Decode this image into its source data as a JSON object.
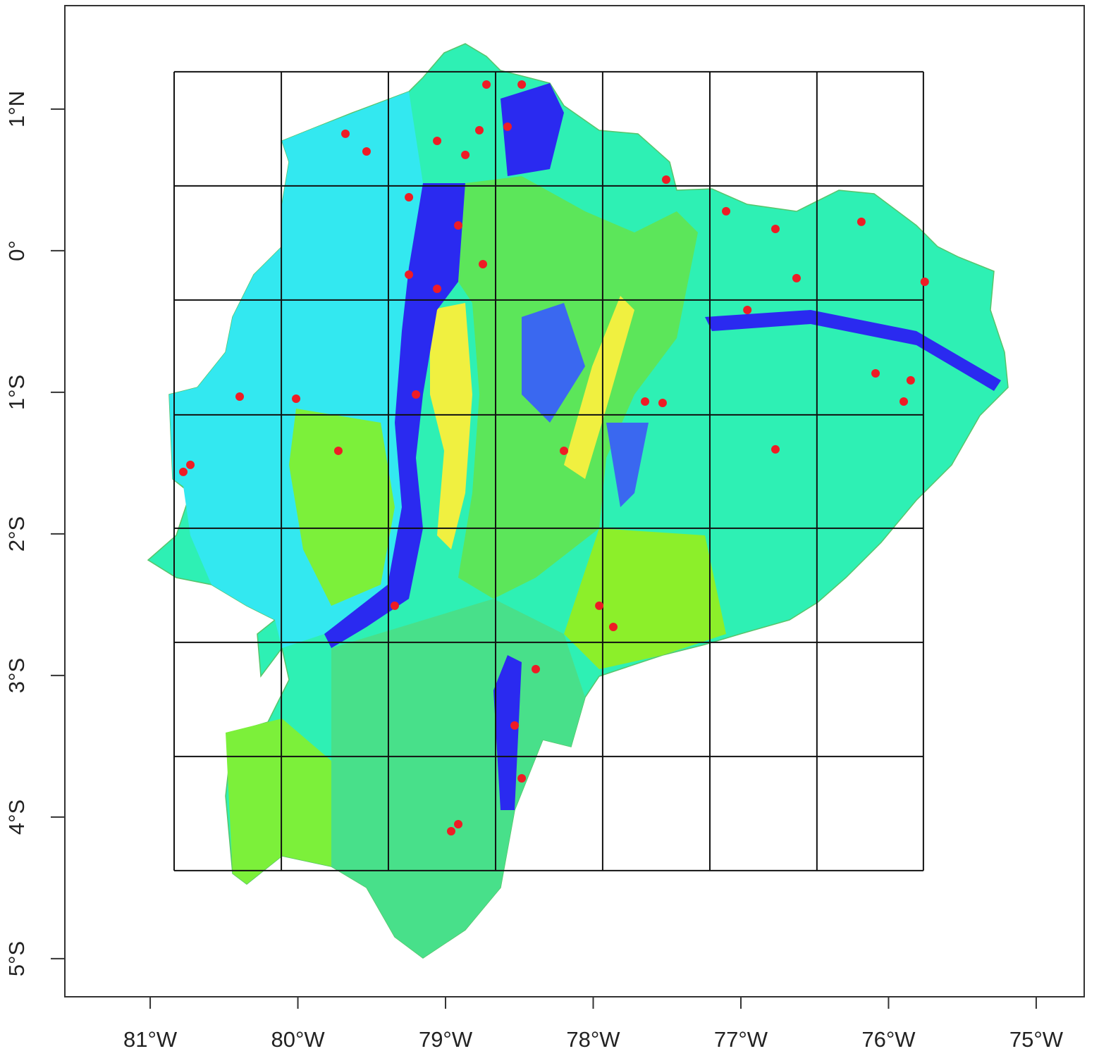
{
  "chart_data": {
    "type": "map",
    "xlim": [
      -81.578,
      -74.675
    ],
    "ylim": [
      -5.269,
      1.731
    ],
    "xticks": [
      {
        "value": -81,
        "label": "81°W"
      },
      {
        "value": -80,
        "label": "80°W"
      },
      {
        "value": -79,
        "label": "79°W"
      },
      {
        "value": -78,
        "label": "78°W"
      },
      {
        "value": -77,
        "label": "77°W"
      },
      {
        "value": -76,
        "label": "76°W"
      },
      {
        "value": -75,
        "label": "75°W"
      }
    ],
    "yticks": [
      {
        "value": 1,
        "label": "1°N"
      },
      {
        "value": 0,
        "label": "0°"
      },
      {
        "value": -1,
        "label": "1°S"
      },
      {
        "value": -2,
        "label": "2°S"
      },
      {
        "value": -3,
        "label": "3°S"
      },
      {
        "value": -4,
        "label": "4°S"
      },
      {
        "value": -5,
        "label": "5°S"
      }
    ],
    "grid_lon": [
      -80.838,
      -80.112,
      -79.387,
      -78.661,
      -77.936,
      -77.21,
      -76.485,
      -75.764
    ],
    "grid_lat": [
      1.264,
      0.458,
      -0.348,
      -1.159,
      -1.96,
      -2.766,
      -3.572,
      -4.378
    ],
    "points": {
      "color": "#ee1c25",
      "lon": [
        -78.771,
        -78.866,
        -79.057,
        -78.723,
        -78.484,
        -78.58,
        -79.248,
        -78.914,
        -79.248,
        -79.057,
        -78.747,
        -79.2,
        -79.726,
        -80.776,
        -80.728,
        -80.394,
        -80.012,
        -77.649,
        -77.53,
        -76.766,
        -76.623,
        -76.766,
        -77.1,
        -76.184,
        -75.897,
        -75.85,
        -76.088,
        -78.198,
        -77.959,
        -77.864,
        -78.962,
        -78.914,
        -78.484,
        -79.344,
        -77.506,
        -76.956,
        -75.755,
        -79.678,
        -79.535,
        -78.389,
        -78.532
      ],
      "lat": [
        0.851,
        0.677,
        0.776,
        1.174,
        1.174,
        0.876,
        0.378,
        0.179,
        -0.169,
        -0.269,
        -0.095,
        -1.015,
        -1.413,
        -1.562,
        -1.512,
        -1.03,
        -1.045,
        -1.065,
        -1.075,
        -1.403,
        -0.194,
        0.154,
        0.279,
        0.204,
        -1.065,
        -0.915,
        -0.866,
        -1.413,
        -2.507,
        -2.657,
        -4.1,
        -4.05,
        -3.726,
        -2.507,
        0.502,
        -0.418,
        -0.219,
        0.826,
        0.701,
        -2.955,
        -3.353
      ]
    }
  }
}
